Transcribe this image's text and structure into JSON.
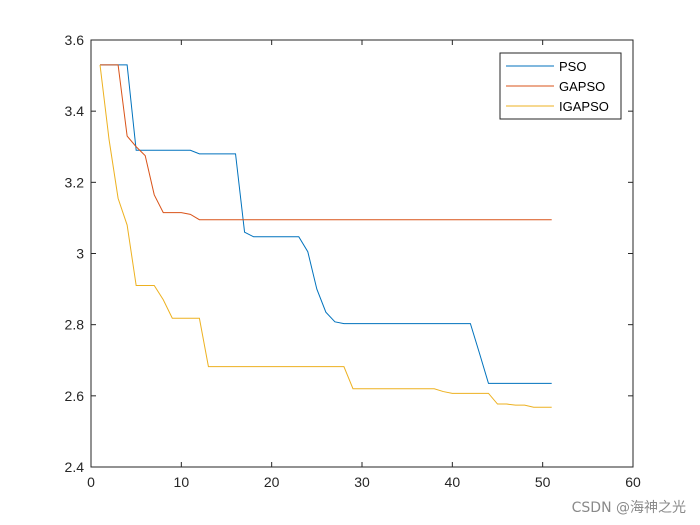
{
  "chart_data": {
    "type": "line",
    "title": "",
    "xlabel": "",
    "ylabel": "",
    "xlim": [
      0,
      60
    ],
    "ylim": [
      2.4,
      3.6
    ],
    "xticks": [
      0,
      10,
      20,
      30,
      40,
      50,
      60
    ],
    "xtick_labels": [
      "0",
      "10",
      "20",
      "30",
      "40",
      "50",
      "60"
    ],
    "yticks": [
      2.4,
      2.6,
      2.8,
      3.0,
      3.2,
      3.4,
      3.6
    ],
    "ytick_labels": [
      "2.4",
      "2.6",
      "2.8",
      "3",
      "3.2",
      "3.4",
      "3.6"
    ],
    "grid": false,
    "legend_position": "top-right",
    "series": [
      {
        "name": "PSO",
        "color": "#0072BD",
        "x": [
          1,
          2,
          3,
          4,
          5,
          6,
          7,
          8,
          9,
          10,
          11,
          12,
          13,
          14,
          15,
          16,
          17,
          18,
          19,
          20,
          21,
          22,
          23,
          24,
          25,
          26,
          27,
          28,
          29,
          30,
          31,
          32,
          33,
          34,
          35,
          36,
          37,
          38,
          39,
          40,
          41,
          42,
          43,
          44,
          45,
          46,
          47,
          48,
          49,
          50,
          51
        ],
        "values": [
          3.53,
          3.53,
          3.53,
          3.53,
          3.29,
          3.29,
          3.29,
          3.29,
          3.29,
          3.29,
          3.29,
          3.28,
          3.28,
          3.28,
          3.28,
          3.28,
          3.06,
          3.047,
          3.047,
          3.047,
          3.047,
          3.047,
          3.047,
          3.005,
          2.9,
          2.835,
          2.808,
          2.803,
          2.803,
          2.803,
          2.803,
          2.803,
          2.803,
          2.803,
          2.803,
          2.803,
          2.803,
          2.803,
          2.803,
          2.803,
          2.803,
          2.803,
          2.72,
          2.635,
          2.635,
          2.635,
          2.635,
          2.635,
          2.635,
          2.635,
          2.635
        ]
      },
      {
        "name": "GAPSO",
        "color": "#D95319",
        "x": [
          1,
          2,
          3,
          4,
          5,
          6,
          7,
          8,
          9,
          10,
          11,
          12,
          13,
          14,
          15,
          16,
          17,
          18,
          19,
          20,
          21,
          22,
          23,
          24,
          25,
          26,
          27,
          28,
          29,
          30,
          31,
          32,
          33,
          34,
          35,
          36,
          37,
          38,
          39,
          40,
          41,
          42,
          43,
          44,
          45,
          46,
          47,
          48,
          49,
          50,
          51
        ],
        "values": [
          3.53,
          3.53,
          3.53,
          3.33,
          3.3,
          3.275,
          3.165,
          3.115,
          3.115,
          3.115,
          3.11,
          3.095,
          3.095,
          3.095,
          3.095,
          3.095,
          3.095,
          3.095,
          3.095,
          3.095,
          3.095,
          3.095,
          3.095,
          3.095,
          3.095,
          3.095,
          3.095,
          3.095,
          3.095,
          3.095,
          3.095,
          3.095,
          3.095,
          3.095,
          3.095,
          3.095,
          3.095,
          3.095,
          3.095,
          3.095,
          3.095,
          3.095,
          3.095,
          3.095,
          3.095,
          3.095,
          3.095,
          3.095,
          3.095,
          3.095,
          3.095
        ]
      },
      {
        "name": "IGAPSO",
        "color": "#EDB120",
        "x": [
          1,
          2,
          3,
          4,
          5,
          6,
          7,
          8,
          9,
          10,
          11,
          12,
          13,
          14,
          15,
          16,
          17,
          18,
          19,
          20,
          21,
          22,
          23,
          24,
          25,
          26,
          27,
          28,
          29,
          30,
          31,
          32,
          33,
          34,
          35,
          36,
          37,
          38,
          39,
          40,
          41,
          42,
          43,
          44,
          45,
          46,
          47,
          48,
          49,
          50,
          51
        ],
        "values": [
          3.53,
          3.32,
          3.155,
          3.08,
          2.91,
          2.91,
          2.91,
          2.87,
          2.818,
          2.818,
          2.818,
          2.818,
          2.682,
          2.682,
          2.682,
          2.682,
          2.682,
          2.682,
          2.682,
          2.682,
          2.682,
          2.682,
          2.682,
          2.682,
          2.682,
          2.682,
          2.682,
          2.682,
          2.62,
          2.62,
          2.62,
          2.62,
          2.62,
          2.62,
          2.62,
          2.62,
          2.62,
          2.62,
          2.612,
          2.607,
          2.607,
          2.607,
          2.607,
          2.607,
          2.577,
          2.577,
          2.574,
          2.574,
          2.568,
          2.568,
          2.568
        ]
      }
    ]
  },
  "watermark": "CSDN @海神之光"
}
